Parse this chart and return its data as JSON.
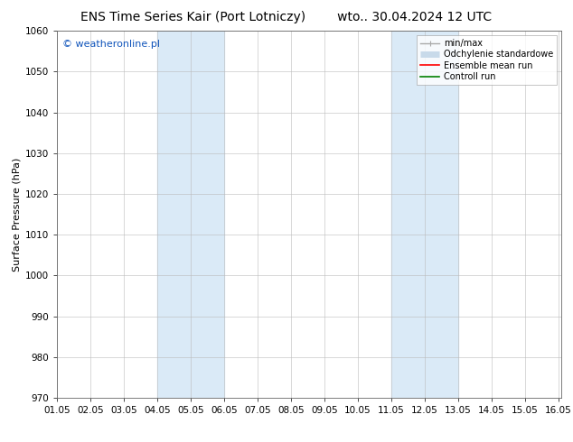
{
  "title_left": "ENS Time Series Kair (Port Lotniczy)",
  "title_right": "wto.. 30.04.2024 12 UTC",
  "ylabel": "Surface Pressure (hPa)",
  "xlim": [
    1.0,
    16.1
  ],
  "ylim": [
    970,
    1060
  ],
  "yticks": [
    970,
    980,
    990,
    1000,
    1010,
    1020,
    1030,
    1040,
    1050,
    1060
  ],
  "xtick_labels": [
    "01.05",
    "02.05",
    "03.05",
    "04.05",
    "05.05",
    "06.05",
    "07.05",
    "08.05",
    "09.05",
    "10.05",
    "11.05",
    "12.05",
    "13.05",
    "14.05",
    "15.05",
    "16.05"
  ],
  "xtick_positions": [
    1.0,
    2.0,
    3.0,
    4.0,
    5.0,
    6.0,
    7.0,
    8.0,
    9.0,
    10.0,
    11.0,
    12.0,
    13.0,
    14.0,
    15.0,
    16.0
  ],
  "shaded_regions": [
    {
      "xmin": 4.0,
      "xmax": 6.0,
      "color": "#daeaf7"
    },
    {
      "xmin": 11.0,
      "xmax": 13.0,
      "color": "#daeaf7"
    }
  ],
  "watermark": "© weatheronline.pl",
  "watermark_color": "#1155bb",
  "legend_entries": [
    {
      "label": "min/max",
      "color": "#aaaaaa",
      "lw": 1.0
    },
    {
      "label": "Odchylenie standardowe",
      "color": "#c8daea",
      "lw": 5
    },
    {
      "label": "Ensemble mean run",
      "color": "red",
      "lw": 1.2
    },
    {
      "label": "Controll run",
      "color": "green",
      "lw": 1.2
    }
  ],
  "bg_color": "#ffffff",
  "grid_color": "#bbbbbb",
  "title_fontsize": 10,
  "tick_fontsize": 7.5,
  "ylabel_fontsize": 8,
  "watermark_fontsize": 8,
  "legend_fontsize": 7
}
